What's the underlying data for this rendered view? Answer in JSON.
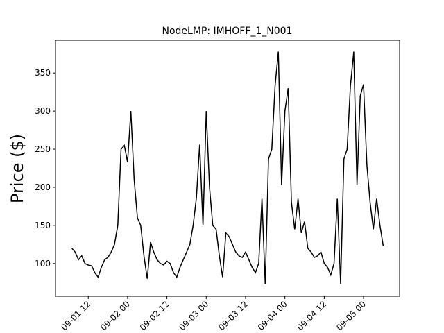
{
  "chart_data": {
    "type": "line",
    "title": "NodeLMP: IMHOFF_1_N001",
    "y_label": "Price ($)",
    "x": [
      "09-01 07",
      "09-01 08",
      "09-01 09",
      "09-01 10",
      "09-01 11",
      "09-01 12",
      "09-01 13",
      "09-01 14",
      "09-01 15",
      "09-01 16",
      "09-01 17",
      "09-01 18",
      "09-01 19",
      "09-01 20",
      "09-01 21",
      "09-01 22",
      "09-01 23",
      "09-02 00",
      "09-02 01",
      "09-02 02",
      "09-02 03",
      "09-02 04",
      "09-02 05",
      "09-02 06",
      "09-02 07",
      "09-02 08",
      "09-02 09",
      "09-02 10",
      "09-02 11",
      "09-02 12",
      "09-02 13",
      "09-02 14",
      "09-02 15",
      "09-02 16",
      "09-02 17",
      "09-02 18",
      "09-02 19",
      "09-02 20",
      "09-02 21",
      "09-02 22",
      "09-02 23",
      "09-03 00",
      "09-03 01",
      "09-03 02",
      "09-03 03",
      "09-03 04",
      "09-03 05",
      "09-03 06",
      "09-03 07",
      "09-03 08",
      "09-03 09",
      "09-03 10",
      "09-03 11",
      "09-03 12",
      "09-03 13",
      "09-03 14",
      "09-03 15",
      "09-03 16",
      "09-03 17",
      "09-03 18",
      "09-03 19",
      "09-03 20",
      "09-03 21",
      "09-03 22",
      "09-03 23",
      "09-04 00",
      "09-04 01",
      "09-04 02",
      "09-04 03",
      "09-04 04",
      "09-04 05",
      "09-04 06",
      "09-04 07",
      "09-04 08",
      "09-04 09",
      "09-04 10",
      "09-04 11",
      "09-04 12",
      "09-04 13",
      "09-04 14",
      "09-04 15",
      "09-04 16",
      "09-04 17",
      "09-04 18",
      "09-04 19",
      "09-04 20",
      "09-04 21",
      "09-04 22",
      "09-04 23",
      "09-05 00",
      "09-05 01",
      "09-05 02",
      "09-05 03",
      "09-05 04",
      "09-05 05",
      "09-05 06"
    ],
    "series": [
      {
        "color": "#000000",
        "values": [
          120,
          115,
          105,
          110,
          100,
          98,
          97,
          88,
          82,
          95,
          105,
          108,
          115,
          125,
          150,
          250,
          255,
          233,
          300,
          210,
          160,
          150,
          110,
          80,
          128,
          115,
          105,
          100,
          98,
          103,
          100,
          88,
          82,
          95,
          105,
          115,
          125,
          150,
          186,
          256,
          150,
          300,
          200,
          150,
          145,
          110,
          82,
          140,
          135,
          125,
          115,
          110,
          108,
          115,
          105,
          95,
          88,
          100,
          185,
          73,
          237,
          250,
          333,
          378,
          203,
          300,
          330,
          180,
          145,
          185,
          140,
          155,
          120,
          115,
          108,
          110,
          115,
          100,
          95,
          85,
          100,
          185,
          73,
          237,
          250,
          333,
          378,
          203,
          320,
          335,
          230,
          180,
          145,
          185,
          150,
          123
        ]
      }
    ],
    "xlim": [
      "09-01 02",
      "09-05 11"
    ],
    "xticks": [
      "09-01 12",
      "09-02 00",
      "09-02 12",
      "09-03 00",
      "09-03 12",
      "09-04 00",
      "09-04 12",
      "09-05 00"
    ],
    "ylim": [
      57,
      393
    ],
    "yticks": [
      100,
      150,
      200,
      250,
      300,
      350
    ]
  }
}
